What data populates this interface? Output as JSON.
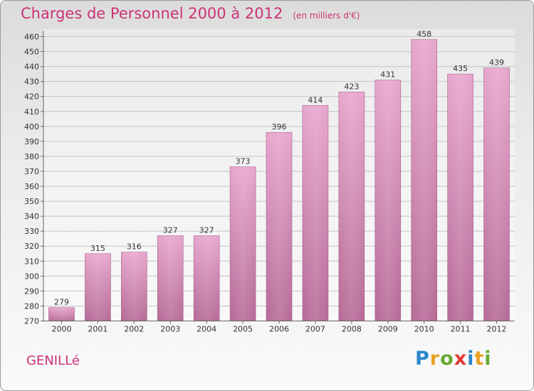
{
  "title": "Charges de Personnel 2000 à 2012",
  "subtitle": "(en milliers d'€)",
  "place": "GENILLé",
  "logo": {
    "p": "P",
    "r": "r",
    "o": "o",
    "x": "x",
    "i1": "i",
    "t": "t",
    "i2": "i"
  },
  "chart_data": {
    "type": "bar",
    "title": "Charges de Personnel 2000 à 2012",
    "subtitle": "(en milliers d'€)",
    "categories": [
      "2000",
      "2001",
      "2002",
      "2003",
      "2004",
      "2005",
      "2006",
      "2007",
      "2008",
      "2009",
      "2010",
      "2011",
      "2012"
    ],
    "values": [
      279,
      315,
      316,
      327,
      327,
      373,
      396,
      414,
      423,
      431,
      458,
      435,
      439
    ],
    "ylim": [
      270,
      460
    ],
    "yticks": [
      270,
      280,
      290,
      300,
      310,
      320,
      330,
      340,
      350,
      360,
      370,
      380,
      390,
      400,
      410,
      420,
      430,
      440,
      450,
      460
    ],
    "grid": true,
    "bar_color": "#c8729f"
  }
}
